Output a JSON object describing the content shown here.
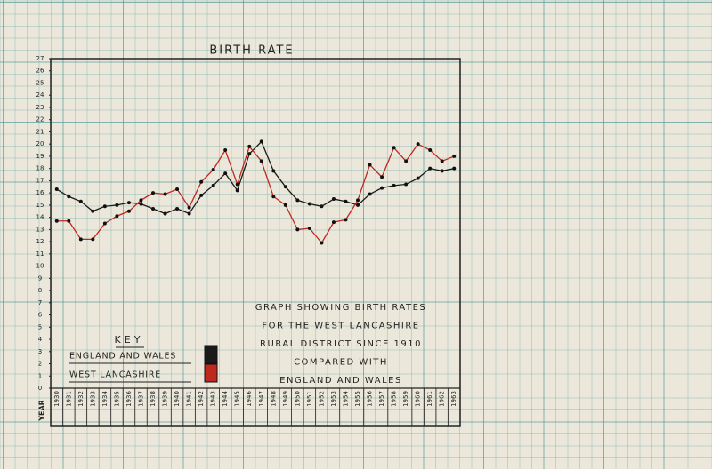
{
  "chart_data": {
    "type": "line",
    "title": "BIRTH RATE",
    "x_label": "YEAR",
    "categories": [
      "1930",
      "1931",
      "1932",
      "1933",
      "1934",
      "1935",
      "1936",
      "1937",
      "1938",
      "1939",
      "1940",
      "1941",
      "1942",
      "1943",
      "1944",
      "1945",
      "1946",
      "1947",
      "1948",
      "1949",
      "1950",
      "1951",
      "1952",
      "1953",
      "1954",
      "1955",
      "1956",
      "1957",
      "1958",
      "1959",
      "1960",
      "1961",
      "1962",
      "1963"
    ],
    "series": [
      {
        "name": "ENGLAND AND WALES",
        "color": "#1a1a1a",
        "values": [
          16.3,
          15.7,
          15.3,
          14.5,
          14.9,
          15.0,
          15.2,
          15.1,
          14.7,
          14.3,
          14.7,
          14.3,
          15.8,
          16.6,
          17.6,
          16.2,
          19.2,
          20.2,
          17.8,
          16.5,
          15.4,
          15.1,
          14.9,
          15.5,
          15.3,
          15.0,
          15.9,
          16.4,
          16.6,
          16.7,
          17.2,
          18.0,
          17.8,
          18.0
        ]
      },
      {
        "name": "WEST LANCASHIRE",
        "color": "#c0281e",
        "values": [
          13.7,
          13.7,
          12.2,
          12.2,
          13.5,
          14.1,
          14.5,
          15.4,
          16.0,
          15.9,
          16.3,
          14.8,
          16.9,
          17.9,
          19.5,
          16.7,
          19.8,
          18.6,
          15.7,
          15.0,
          13.0,
          13.1,
          11.9,
          13.6,
          13.8,
          15.4,
          18.3,
          17.3,
          19.7,
          18.6,
          20.0,
          19.5,
          18.6,
          19.0
        ]
      }
    ],
    "ylim": [
      0,
      27
    ],
    "yticks": [
      0,
      1,
      2,
      3,
      4,
      5,
      6,
      7,
      8,
      9,
      10,
      11,
      12,
      13,
      14,
      15,
      16,
      17,
      18,
      19,
      20,
      21,
      22,
      23,
      24,
      25,
      26,
      27
    ],
    "legend_title": "KEY",
    "annotation": [
      "GRAPH SHOWING BIRTH RATES",
      "FOR THE WEST LANCASHIRE",
      "RURAL DISTRICT SINCE 1910",
      "COMPARED WITH",
      "ENGLAND AND WALES"
    ]
  }
}
